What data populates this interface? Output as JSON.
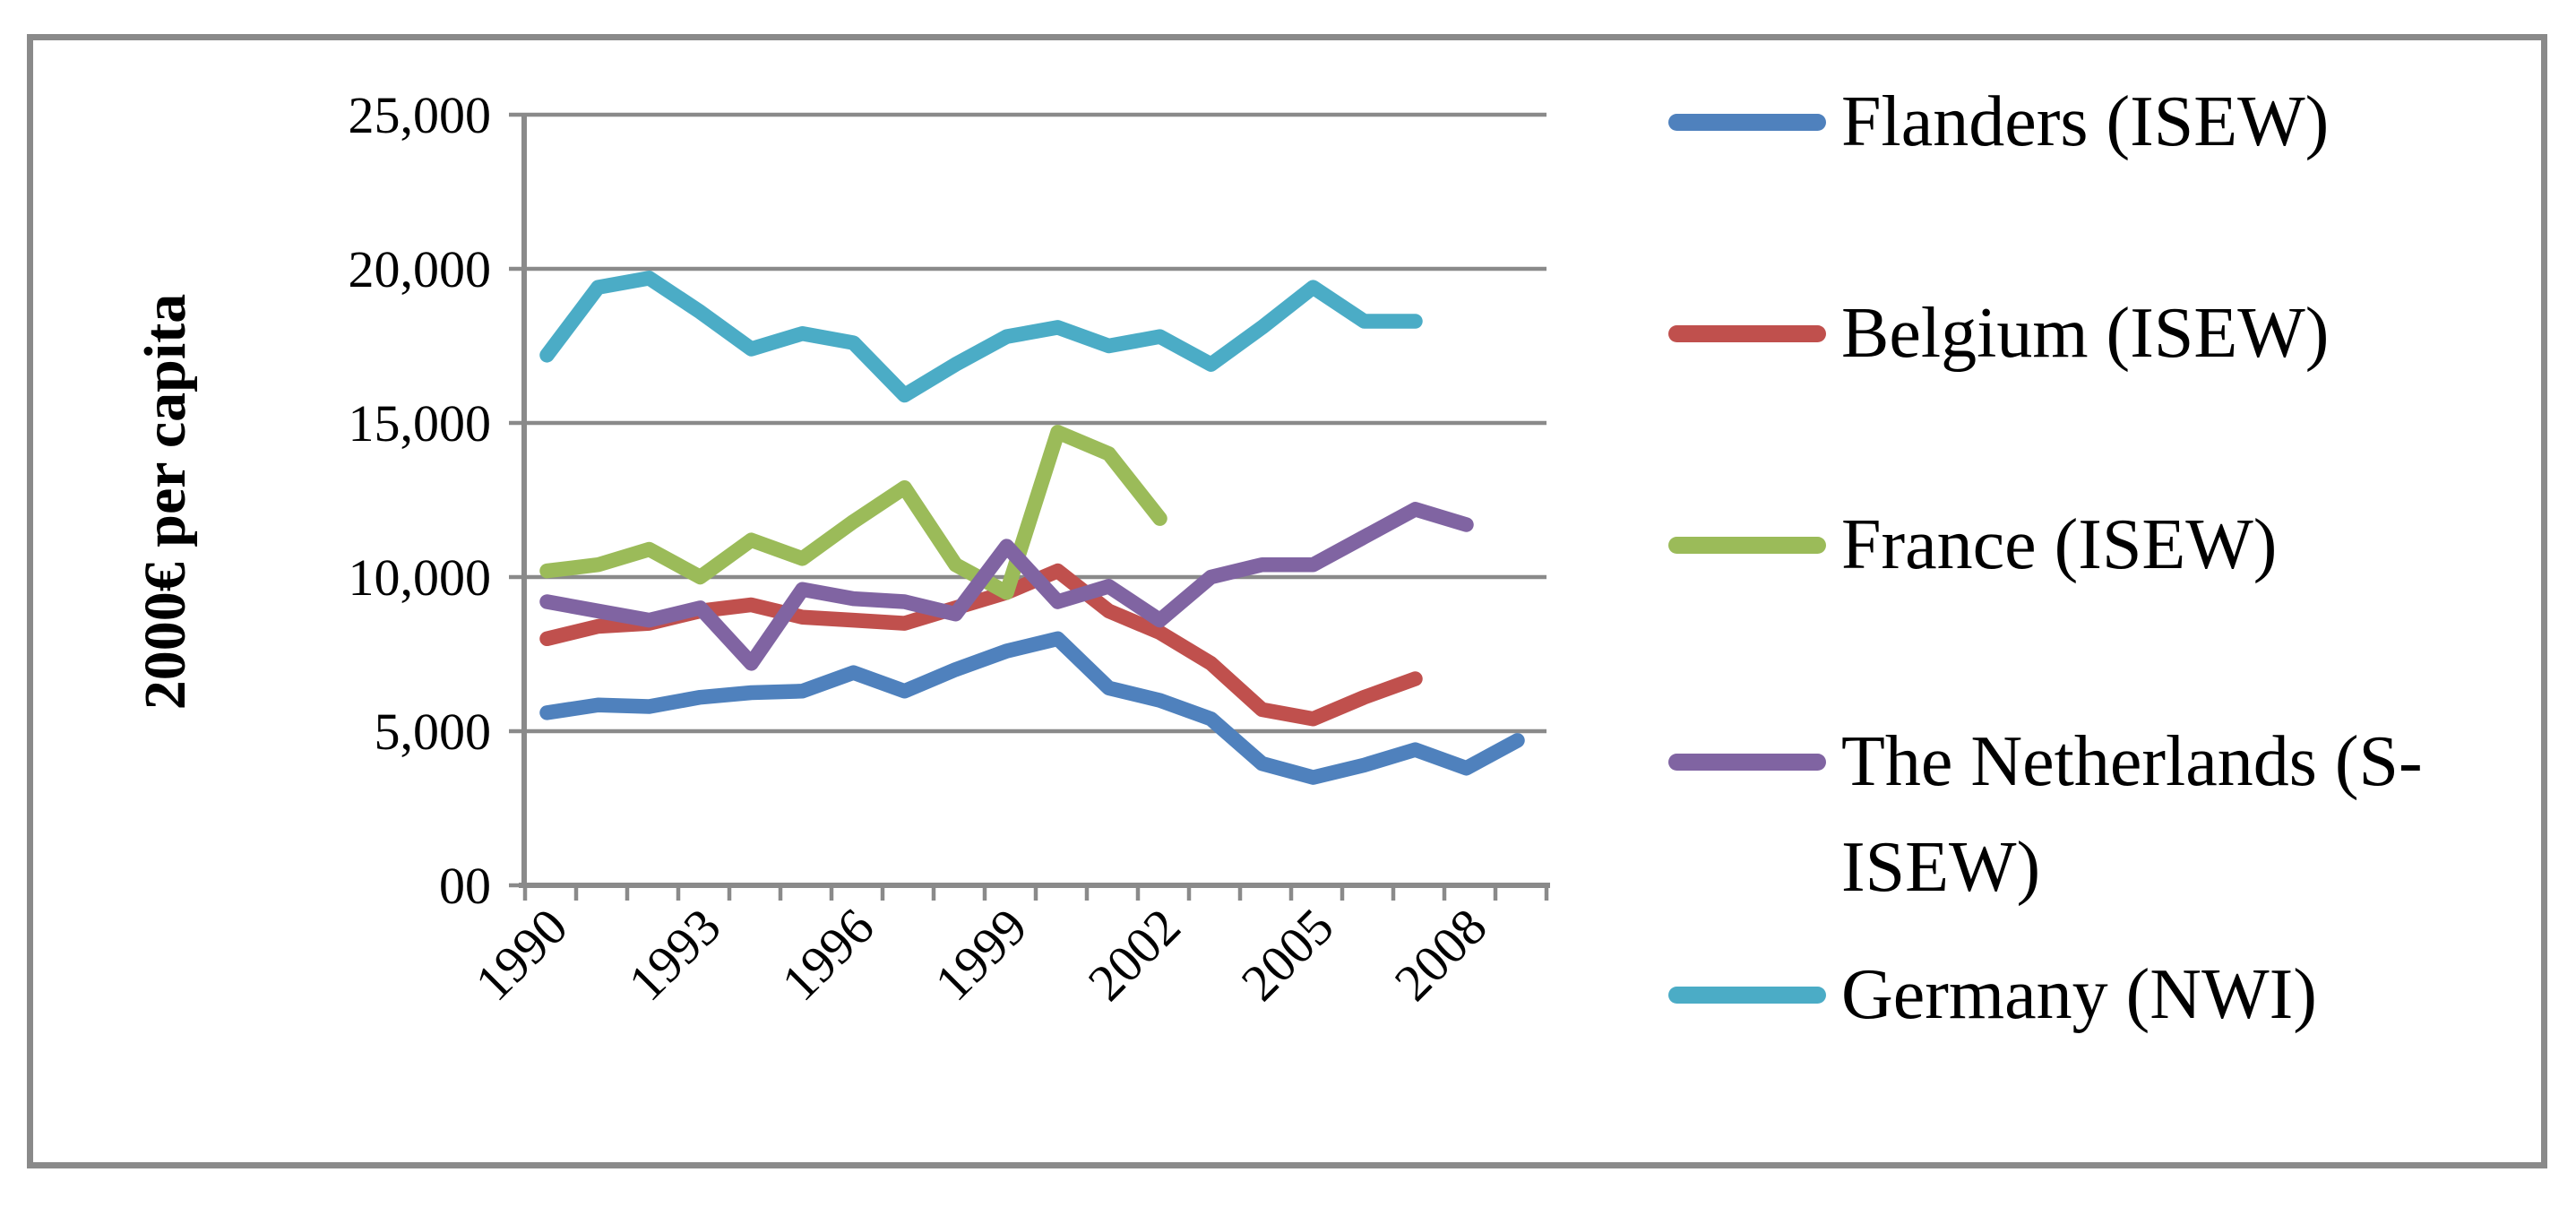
{
  "figure": {
    "background": "#ffffff",
    "border_color": "#8a8a8a",
    "gridline_color": "#8a8a8a",
    "axis_color": "#8a8a8a"
  },
  "chart_data": {
    "type": "line",
    "title": "",
    "xlabel": "",
    "ylabel": "2000€ per capita",
    "ylim": [
      0,
      25000
    ],
    "x_first_tick_year": 1990,
    "x_last_tick_year": 2010,
    "grid": true,
    "legend_position": "right",
    "yticks": [
      {
        "value": 25000,
        "label": "25,000"
      },
      {
        "value": 20000,
        "label": "20,000"
      },
      {
        "value": 15000,
        "label": "15,000"
      },
      {
        "value": 10000,
        "label": "10,000"
      },
      {
        "value": 5000,
        "label": "5,000"
      },
      {
        "value": 0,
        "label": "00"
      }
    ],
    "xticks": [
      {
        "year": 1990,
        "label": "1990"
      },
      {
        "year": 1993,
        "label": "1993"
      },
      {
        "year": 1996,
        "label": "1996"
      },
      {
        "year": 1999,
        "label": "1999"
      },
      {
        "year": 2002,
        "label": "2002"
      },
      {
        "year": 2005,
        "label": "2005"
      },
      {
        "year": 2008,
        "label": "2008"
      }
    ],
    "series": [
      {
        "name": "Flanders (ISEW)",
        "color": "#4F81BD",
        "years": [
          1990,
          1991,
          1992,
          1993,
          1994,
          1995,
          1996,
          1997,
          1998,
          1999,
          2000,
          2001,
          2002,
          2003,
          2004,
          2005,
          2006,
          2007,
          2008,
          2009
        ],
        "values": [
          5600,
          5850,
          5800,
          6100,
          6250,
          6300,
          6900,
          6300,
          7000,
          7600,
          8000,
          6400,
          6000,
          5400,
          3950,
          3500,
          3900,
          4400,
          3800,
          4700
        ]
      },
      {
        "name": "Belgium (ISEW)",
        "color": "#C0504D",
        "years": [
          1990,
          1991,
          1992,
          1993,
          1994,
          1995,
          1996,
          1997,
          1998,
          1999,
          2000,
          2001,
          2002,
          2003,
          2004,
          2005,
          2006,
          2007
        ],
        "values": [
          8000,
          8400,
          8500,
          8900,
          9100,
          8700,
          8600,
          8500,
          9000,
          9500,
          10200,
          8900,
          8200,
          7200,
          5700,
          5400,
          6100,
          6700
        ]
      },
      {
        "name": "France (ISEW)",
        "color": "#9BBB59",
        "years": [
          1990,
          1991,
          1992,
          1993,
          1994,
          1995,
          1996,
          1997,
          1998,
          1999,
          2000,
          2001,
          2002
        ],
        "values": [
          10200,
          10400,
          10900,
          10000,
          11200,
          10600,
          11800,
          12900,
          10400,
          9500,
          14700,
          14000,
          11900
        ]
      },
      {
        "name": "The Netherlands (S-ISEW)",
        "color": "#8064A2",
        "years": [
          1990,
          1991,
          1992,
          1993,
          1994,
          1995,
          1996,
          1997,
          1998,
          1999,
          2000,
          2001,
          2002,
          2003,
          2004,
          2005,
          2006,
          2007,
          2008
        ],
        "values": [
          9200,
          8900,
          8600,
          9000,
          7200,
          9600,
          9300,
          9200,
          8800,
          11000,
          9200,
          9700,
          8600,
          10000,
          10400,
          10400,
          11300,
          12200,
          11700
        ]
      },
      {
        "name": "Germany (NWI)",
        "color": "#4BACC6",
        "years": [
          1990,
          1991,
          1992,
          1993,
          1994,
          1995,
          1996,
          1997,
          1998,
          1999,
          2000,
          2001,
          2002,
          2003,
          2004,
          2005,
          2006,
          2007
        ],
        "values": [
          17200,
          19400,
          19700,
          18600,
          17400,
          17900,
          17600,
          15900,
          16900,
          17800,
          18100,
          17500,
          17800,
          16900,
          18100,
          19400,
          18300,
          18300
        ]
      }
    ]
  }
}
